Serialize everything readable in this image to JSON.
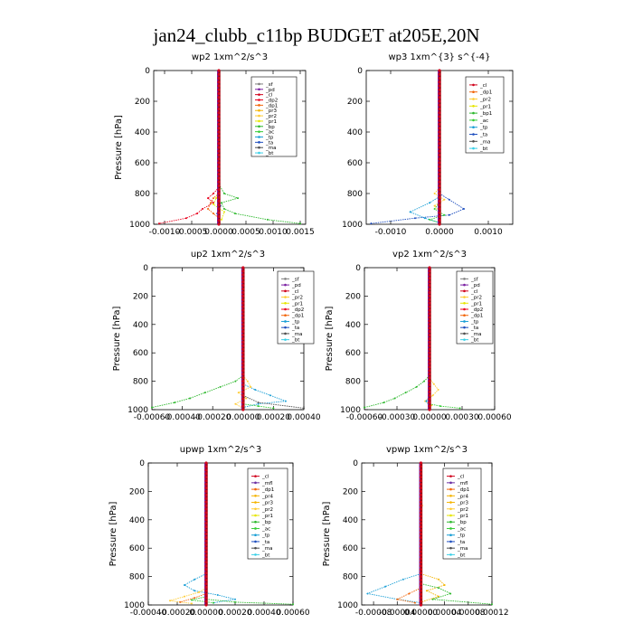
{
  "figure_title": "jan24_clubb_c11bp  BUDGET at205E,20N",
  "colors": {
    "sf": "#7f7f7f",
    "pd": "#7a1fa2",
    "cl": "#d0021b",
    "dp2": "#e8001c",
    "dp1": "#f2660a",
    "pr3": "#f4b400",
    "pr2": "#ffcc33",
    "pr1": "#e6e600",
    "bp": "#2db82d",
    "ac": "#35cc35",
    "tp": "#1a9fd6",
    "ta": "#1f4fbf",
    "ma": "#4d4d4d",
    "bt": "#39d0e8",
    "mfl": "#6b2fa3",
    "bt_line": "#8b0000"
  },
  "chart_data": [
    {
      "type": "line",
      "title": "wp2   1xm^2/s^3",
      "ylabel": "Pressure  [hPa]",
      "ylim": [
        1000,
        0
      ],
      "xlim": [
        -0.0012,
        0.0016
      ],
      "xticks": [
        -0.001,
        -0.0005,
        0.0,
        0.0005,
        0.001,
        0.0015
      ],
      "xtick_labels": [
        "-0.0010",
        "-0.0005",
        "0.0000",
        "0.0005",
        "0.0010",
        "0.0015"
      ],
      "yticks": [
        0,
        200,
        400,
        600,
        800,
        1000
      ],
      "legend": [
        "_sf",
        "_pd",
        "_cl",
        "_dp2",
        "_dp1",
        "_pr3",
        "_pr2",
        "_pr1",
        "_bp",
        "_ac",
        "_tp",
        "_ta",
        "_ma",
        "_bt"
      ],
      "series": [
        {
          "name": "_bp",
          "color": "bp",
          "points": [
            [
              0,
              740
            ],
            [
              0.0001,
              800
            ],
            [
              0.00035,
              830
            ],
            [
              5e-05,
              860
            ],
            [
              0.0001,
              900
            ],
            [
              0.0003,
              930
            ],
            [
              0.0009,
              970
            ],
            [
              0.0015,
              995
            ]
          ]
        },
        {
          "name": "_dp1",
          "color": "dp1",
          "points": [
            [
              0,
              800
            ],
            [
              -0.0001,
              830
            ],
            [
              -0.00015,
              860
            ],
            [
              -0.0002,
              900
            ],
            [
              -0.0001,
              930
            ],
            [
              0,
              960
            ]
          ]
        },
        {
          "name": "_dp2",
          "color": "dp2",
          "points": [
            [
              0,
              760
            ],
            [
              -0.0001,
              800
            ],
            [
              -0.0002,
              830
            ],
            [
              -0.0001,
              860
            ],
            [
              -0.0003,
              900
            ],
            [
              -0.0004,
              930
            ],
            [
              -0.0006,
              960
            ],
            [
              -0.0011,
              995
            ]
          ]
        },
        {
          "name": "_pr1",
          "color": "pr1",
          "points": [
            [
              0,
              780
            ],
            [
              -5e-05,
              830
            ],
            [
              -0.0001,
              870
            ],
            [
              0.0001,
              920
            ],
            [
              5e-05,
              970
            ]
          ]
        },
        {
          "name": "_ta",
          "color": "ta",
          "points": [
            [
              0,
              820
            ],
            [
              3e-05,
              880
            ],
            [
              -3e-05,
              930
            ],
            [
              0,
              990
            ]
          ]
        }
      ]
    },
    {
      "type": "line",
      "title": "wp3   1xm^{3} s^{-4}",
      "ylabel": "",
      "ylim": [
        1000,
        0
      ],
      "xlim": [
        -0.0015,
        0.0015
      ],
      "xticks": [
        -0.001,
        0.0,
        0.001
      ],
      "xtick_labels": [
        "-0.0010",
        "0.0000",
        "0.0010"
      ],
      "yticks": [
        0,
        200,
        400,
        600,
        800,
        1000
      ],
      "legend": [
        "_cl",
        "_dp1",
        "_pr2",
        "_pr1",
        "_bp1",
        "_ac",
        "_tp",
        "_ta",
        "_ma",
        "_bt"
      ],
      "series": [
        {
          "name": "_ta",
          "color": "ta",
          "points": [
            [
              0,
              800
            ],
            [
              0.0002,
              840
            ],
            [
              0.0005,
              900
            ],
            [
              0.0002,
              940
            ],
            [
              -0.0005,
              960
            ],
            [
              -0.0014,
              995
            ]
          ]
        },
        {
          "name": "_tp",
          "color": "tp",
          "points": [
            [
              0,
              820
            ],
            [
              -0.0002,
              860
            ],
            [
              -0.0006,
              920
            ],
            [
              -0.0003,
              960
            ],
            [
              0,
              990
            ]
          ]
        },
        {
          "name": "_pr2",
          "color": "pr2",
          "points": [
            [
              0,
              760
            ],
            [
              -0.0001,
              800
            ],
            [
              0.0001,
              840
            ],
            [
              -0.0001,
              880
            ],
            [
              0,
              920
            ]
          ]
        },
        {
          "name": "_ac",
          "color": "ac",
          "points": [
            [
              0,
              860
            ],
            [
              -0.0001,
              900
            ],
            [
              0.0001,
              940
            ],
            [
              -0.0002,
              970
            ],
            [
              0,
              990
            ]
          ]
        }
      ]
    },
    {
      "type": "line",
      "title": "up2   1xm^2/s^3",
      "ylabel": "Pressure  [hPa]",
      "ylim": [
        1000,
        0
      ],
      "xlim": [
        -0.0006,
        0.0004
      ],
      "xticks": [
        -0.0006,
        -0.0004,
        -0.0002,
        0.0,
        0.0002,
        0.0004
      ],
      "xtick_labels": [
        "-0.00060",
        "-0.00040",
        "-0.00020",
        "0.00000",
        "0.00020",
        "0.00040"
      ],
      "yticks": [
        0,
        200,
        400,
        600,
        800,
        1000
      ],
      "legend": [
        "_sf",
        "_pd",
        "_cl",
        "_pr2",
        "_pr1",
        "_dp2",
        "_dp1",
        "_tp",
        "_ta",
        "_ma",
        "_bt"
      ],
      "series": [
        {
          "name": "_bp",
          "color": "bp",
          "points": [
            [
              0,
              760
            ],
            [
              -5e-05,
              800
            ],
            [
              -0.00015,
              840
            ],
            [
              -0.00025,
              880
            ],
            [
              -0.00035,
              920
            ],
            [
              -0.00045,
              950
            ],
            [
              -0.0006,
              985
            ]
          ]
        },
        {
          "name": "_tp",
          "color": "tp",
          "points": [
            [
              0,
              820
            ],
            [
              8e-05,
              860
            ],
            [
              0.00018,
              900
            ],
            [
              0.00028,
              940
            ],
            [
              0.0001,
              960
            ],
            [
              0,
              985
            ]
          ]
        },
        {
          "name": "_pr2",
          "color": "pr2",
          "points": [
            [
              0,
              760
            ],
            [
              3e-05,
              800
            ],
            [
              5e-05,
              840
            ],
            [
              -3e-05,
              880
            ],
            [
              2e-05,
              920
            ],
            [
              -5e-05,
              960
            ],
            [
              0,
              990
            ]
          ]
        },
        {
          "name": "_ma",
          "color": "ma",
          "points": [
            [
              0,
              900
            ],
            [
              0.0001,
              950
            ],
            [
              0.0004,
              990
            ]
          ]
        },
        {
          "name": "_ac",
          "color": "ac",
          "points": [
            [
              0,
              960
            ],
            [
              0.0001,
              975
            ],
            [
              0.0002,
              990
            ]
          ]
        }
      ]
    },
    {
      "type": "line",
      "title": "vp2   1xm^2/s^3",
      "ylabel": "Pressure  [hPa]",
      "ylim": [
        1000,
        0
      ],
      "xlim": [
        -0.0006,
        0.0006
      ],
      "xticks": [
        -0.0006,
        -0.0003,
        0.0,
        0.0003,
        0.0006
      ],
      "xtick_labels": [
        "-0.00060",
        "-0.00030",
        "0.00000",
        "0.00030",
        "0.00060"
      ],
      "yticks": [
        0,
        200,
        400,
        600,
        800,
        1000
      ],
      "legend": [
        "_sf",
        "_pd",
        "_cl",
        "_pr2",
        "_pr1",
        "_dp2",
        "_dp1",
        "_tp",
        "_ta",
        "_ma",
        "_bt"
      ],
      "series": [
        {
          "name": "_bp",
          "color": "bp",
          "points": [
            [
              0,
              760
            ],
            [
              -5e-05,
              800
            ],
            [
              -0.00012,
              840
            ],
            [
              -0.00022,
              880
            ],
            [
              -0.00032,
              920
            ],
            [
              -0.00042,
              950
            ],
            [
              -0.0006,
              985
            ]
          ]
        },
        {
          "name": "_pr2",
          "color": "pr2",
          "points": [
            [
              0,
              780
            ],
            [
              4e-05,
              820
            ],
            [
              8e-05,
              860
            ],
            [
              3e-05,
              900
            ],
            [
              -4e-05,
              940
            ],
            [
              2e-05,
              970
            ],
            [
              0,
              990
            ]
          ]
        },
        {
          "name": "_tp",
          "color": "tp",
          "points": [
            [
              0,
              900
            ],
            [
              -3e-05,
              940
            ],
            [
              0,
              980
            ]
          ]
        },
        {
          "name": "_ac",
          "color": "ac",
          "points": [
            [
              0,
              960
            ],
            [
              0.0001,
              975
            ],
            [
              0.00028,
              990
            ]
          ]
        }
      ]
    },
    {
      "type": "line",
      "title": "upwp   1xm^2/s^3",
      "ylabel": "Pressure  [hPa]",
      "ylim": [
        1000,
        0
      ],
      "xlim": [
        -0.0004,
        0.0006
      ],
      "xticks": [
        -0.0004,
        -0.0002,
        0.0,
        0.0002,
        0.0004,
        0.0006
      ],
      "xtick_labels": [
        "-0.00040",
        "-0.00020",
        "0.00000",
        "0.00020",
        "0.00040",
        "0.00060"
      ],
      "yticks": [
        0,
        200,
        400,
        600,
        800,
        1000
      ],
      "legend": [
        "_cl",
        "_mfl",
        "_dp1",
        "_pr4",
        "_pr3",
        "_pr2",
        "_pr1",
        "_bp",
        "_ac",
        "_tp",
        "_ta",
        "_ma",
        "_bt"
      ],
      "series": [
        {
          "name": "_tp",
          "color": "tp",
          "points": [
            [
              0,
              780
            ],
            [
              -8e-05,
              820
            ],
            [
              -0.00015,
              860
            ],
            [
              -8e-05,
              900
            ],
            [
              8e-05,
              930
            ],
            [
              0.0002,
              960
            ],
            [
              5e-05,
              985
            ]
          ]
        },
        {
          "name": "_pr2",
          "color": "pr2",
          "points": [
            [
              0,
              880
            ],
            [
              -5e-05,
              910
            ],
            [
              -0.00015,
              940
            ],
            [
              -0.00025,
              970
            ],
            [
              -0.0001,
              990
            ]
          ]
        },
        {
          "name": "_dp1",
          "color": "dp1",
          "points": [
            [
              0,
              920
            ],
            [
              -8e-05,
              950
            ],
            [
              -0.00018,
              980
            ]
          ]
        },
        {
          "name": "_bp",
          "color": "bp",
          "points": [
            [
              0,
              960
            ],
            [
              0.0002,
              980
            ],
            [
              0.0006,
              995
            ]
          ]
        },
        {
          "name": "_ac",
          "color": "ac",
          "points": [
            [
              0,
              940
            ],
            [
              -0.0001,
              965
            ],
            [
              5e-05,
              985
            ]
          ]
        }
      ]
    },
    {
      "type": "line",
      "title": "vpwp   1xm^2/s^3",
      "ylabel": "Pressure  [hPa]",
      "ylim": [
        1000,
        0
      ],
      "xlim": [
        -0.0001,
        0.00012
      ],
      "xticks": [
        -8e-05,
        -4e-05,
        0.0,
        4e-05,
        8e-05,
        0.00012
      ],
      "xtick_labels": [
        "-0.00008",
        "-0.00004",
        "0.00000",
        "0.00004",
        "0.00008",
        "0.00012"
      ],
      "yticks": [
        0,
        200,
        400,
        600,
        800,
        1000
      ],
      "legend": [
        "_cl",
        "_mfl",
        "_dp1",
        "_pr4",
        "_pr3",
        "_pr2",
        "_pr1",
        "_bp",
        "_ac",
        "_tp",
        "_ta",
        "_ma",
        "_bt"
      ],
      "series": [
        {
          "name": "_pr2",
          "color": "pr2",
          "points": [
            [
              0,
              240
            ],
            [
              2e-06,
              300
            ]
          ]
        },
        {
          "name": "_tp",
          "color": "tp",
          "points": [
            [
              0,
              780
            ],
            [
              -3e-05,
              820
            ],
            [
              -6e-05,
              870
            ],
            [
              -9e-05,
              920
            ],
            [
              -4e-05,
              960
            ],
            [
              0,
              985
            ]
          ]
        },
        {
          "name": "_pr3",
          "color": "pr3",
          "points": [
            [
              0,
              780
            ],
            [
              3e-05,
              820
            ],
            [
              4e-05,
              860
            ],
            [
              1e-05,
              900
            ],
            [
              3e-05,
              940
            ],
            [
              0,
              980
            ]
          ]
        },
        {
          "name": "_bp",
          "color": "bp",
          "points": [
            [
              0,
              850
            ],
            [
              3e-05,
              880
            ],
            [
              5e-05,
              920
            ],
            [
              2e-05,
              960
            ],
            [
              0.00012,
              995
            ]
          ]
        },
        {
          "name": "_dp1",
          "color": "dp1",
          "points": [
            [
              0,
              880
            ],
            [
              -2e-05,
              920
            ],
            [
              -4e-05,
              960
            ],
            [
              -1e-05,
              985
            ]
          ]
        }
      ]
    }
  ]
}
